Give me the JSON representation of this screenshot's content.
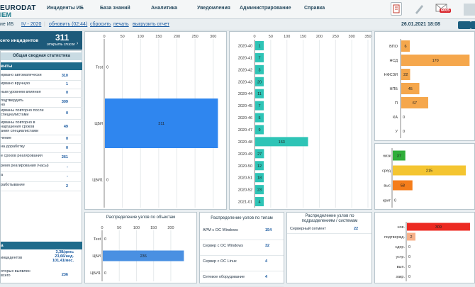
{
  "app": {
    "logo_line1": "EURODAT",
    "logo_line2": "IEM",
    "notif_count": "6005"
  },
  "nav": [
    "Инциденты ИБ",
    "База знаний",
    "Аналитика",
    "Уведомления",
    "Администрирование",
    "Справка"
  ],
  "subbar": {
    "prefix": "ие ИБ",
    "period": "IV - 2020",
    "refresh": "обновить (02:44)",
    "reset": "сбросить",
    "print": "печать",
    "export": "выгрузить отчет",
    "datetime": "26.01.2021 18:08"
  },
  "summary": {
    "label": "сего инцидентов",
    "total": "311",
    "open_list": "открыть список",
    "general_title": "Общая сводная статистика"
  },
  "sections": {
    "s1": "енты",
    "s2": "а"
  },
  "stats": [
    {
      "label": "ирвано автоматически",
      "value": "310"
    },
    {
      "label": "ирвано вручную",
      "value": "1"
    },
    {
      "label": "ным уровнем влияния",
      "value": "0"
    },
    {
      "label": "подтвердить\nно",
      "value": "309"
    },
    {
      "label": "ирваны повторно после\nспециалистами",
      "value": "0"
    },
    {
      "label": "ирваны повторно в\nнарушения сроков\nания специалистами",
      "value": "49"
    },
    {
      "label": "чение",
      "value": "0"
    },
    {
      "label": "на доработку",
      "value": "0"
    },
    {
      "label": "е сроков реагирования",
      "value": "261"
    },
    {
      "label": "ремя реагирования (часы)",
      "value": "-"
    },
    {
      "label": "а",
      "value": "-"
    },
    {
      "label": "работывание",
      "value": "2"
    }
  ],
  "stats2": [
    {
      "label": "инцидентов",
      "value": "3,38/день\n23,66/нед.\n101,41/мес."
    },
    {
      "label": "оторых выявлен\nвсего",
      "value": "236"
    }
  ],
  "chart_data": [
    {
      "type": "bar",
      "orientation": "horizontal",
      "title": "",
      "categories": [
        "Test",
        "ЦБИ",
        "ЦБИ1"
      ],
      "values": [
        0,
        311,
        0
      ],
      "xticks": [
        "0",
        "50",
        "100",
        "150",
        "200",
        "250",
        "300"
      ],
      "xlim": [
        0,
        320
      ],
      "color": "#2f86ef"
    },
    {
      "type": "bar",
      "orientation": "horizontal",
      "title": "",
      "categories": [
        "2020-40",
        "2020-41",
        "2020-42",
        "2020-43",
        "2020-44",
        "2020-45",
        "2020-46",
        "2020-47",
        "2020-48",
        "2020-49",
        "2020-50",
        "2020-51",
        "2020-52",
        "2021-01"
      ],
      "values": [
        1,
        7,
        3,
        20,
        11,
        7,
        5,
        9,
        163,
        27,
        12,
        18,
        23,
        4
      ],
      "xticks": [
        "0",
        "50",
        "100",
        "150",
        "200",
        "250",
        "300",
        "350"
      ],
      "xlim": [
        0,
        350
      ],
      "color": "#2ec4b6"
    },
    {
      "type": "bar",
      "orientation": "horizontal",
      "title": "",
      "categories": [
        "ВПО",
        "НСД",
        "НФСЗИ",
        "НПБ",
        "П",
        "КА",
        "У"
      ],
      "values": [
        6,
        170,
        22,
        45,
        67,
        0,
        0
      ],
      "xlim": [
        0,
        180
      ],
      "color": "#f5a74c"
    },
    {
      "type": "bar",
      "orientation": "horizontal",
      "title": "",
      "categories": [
        "низк",
        "сред",
        "выс",
        "крит"
      ],
      "values": [
        37,
        215,
        58,
        0
      ],
      "colors": [
        "#2fae39",
        "#f4c531",
        "#f57d1b",
        "#f57d1b"
      ],
      "xlim": [
        0,
        240
      ]
    },
    {
      "type": "bar",
      "orientation": "horizontal",
      "title": "",
      "categories": [
        "нов.",
        "подтвержд.",
        "сдер.",
        "устр.",
        "вып.",
        "закр."
      ],
      "values": [
        309,
        2,
        0,
        0,
        0,
        0
      ],
      "colors": [
        "#ec2a22",
        "#f7b089",
        "#f7b089",
        "#f7b089",
        "#f7b089",
        "#f7b089"
      ],
      "xlim": [
        0,
        330
      ]
    },
    {
      "type": "bar",
      "orientation": "horizontal",
      "title": "Распределение узлов по объектам",
      "categories": [
        "Test",
        "ЦБИ",
        "ЦБИ1"
      ],
      "values": [
        0,
        236,
        0
      ],
      "xticks": [
        "0",
        "50",
        "100",
        "150",
        "200"
      ],
      "xlim": [
        0,
        260
      ],
      "color": "#4a90e2"
    }
  ],
  "tables": {
    "types": {
      "title": "Распределение узлов по типам",
      "rows": [
        {
          "label": "АРМ с ОС Windows",
          "value": "154"
        },
        {
          "label": "Сервер с ОС Windows",
          "value": "32"
        },
        {
          "label": "Сервер с ОС Linux",
          "value": "4"
        },
        {
          "label": "Сетевое оборудование",
          "value": "4"
        }
      ]
    },
    "units": {
      "title": "Распределение узлов по подразделениям / системам",
      "rows": [
        {
          "label": "Серверный сегмент",
          "value": "22"
        }
      ]
    }
  }
}
